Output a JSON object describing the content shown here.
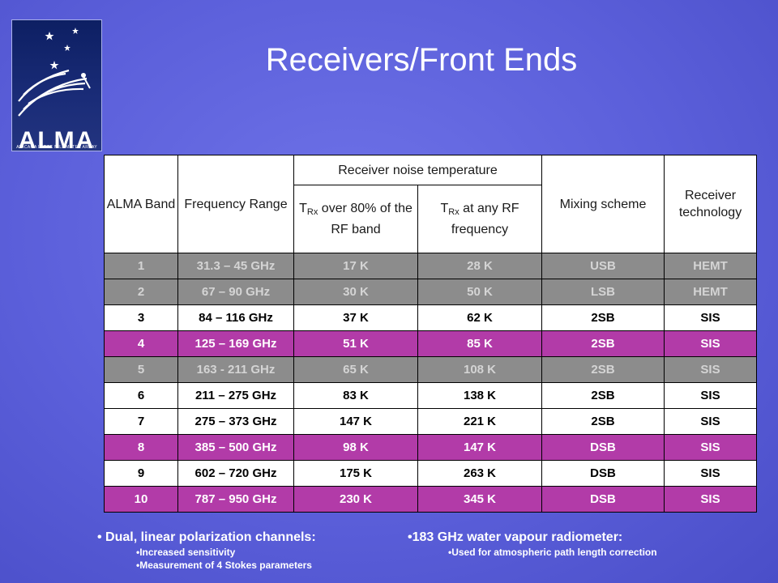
{
  "logo": {
    "wordmark": "ALMA",
    "subtitle": "ATACAMA LARGE MILLIMETER ARRAY"
  },
  "title": "Receivers/Front Ends",
  "table": {
    "headers": {
      "band": "ALMA Band",
      "freq": "Frequency Range",
      "noise": "Receiver noise temperature",
      "trx_prefix": "T",
      "trx_sub": "Rx",
      "trx80_suffix": " over 80% of the RF band",
      "trxany_suffix": " at any RF frequency",
      "mixing": "Mixing scheme",
      "tech": "Receiver technology"
    },
    "rows": [
      {
        "band": "1",
        "freq": "31.3 – 45 GHz",
        "t80": "17 K",
        "tany": "28 K",
        "mix": "USB",
        "tech": "HEMT",
        "style": "gray"
      },
      {
        "band": "2",
        "freq": "67 – 90 GHz",
        "t80": "30 K",
        "tany": "50 K",
        "mix": "LSB",
        "tech": "HEMT",
        "style": "gray"
      },
      {
        "band": "3",
        "freq": "84 – 116 GHz",
        "t80": "37 K",
        "tany": "62 K",
        "mix": "2SB",
        "tech": "SIS",
        "style": "white"
      },
      {
        "band": "4",
        "freq": "125 – 169 GHz",
        "t80": "51 K",
        "tany": "85 K",
        "mix": "2SB",
        "tech": "SIS",
        "style": "magenta"
      },
      {
        "band": "5",
        "freq": "163 - 211 GHz",
        "t80": "65 K",
        "tany": "108 K",
        "mix": "2SB",
        "tech": "SIS",
        "style": "gray"
      },
      {
        "band": "6",
        "freq": "211 – 275 GHz",
        "t80": "83 K",
        "tany": "138 K",
        "mix": "2SB",
        "tech": "SIS",
        "style": "white"
      },
      {
        "band": "7",
        "freq": "275 – 373 GHz",
        "t80": "147 K",
        "tany": "221 K",
        "mix": "2SB",
        "tech": "SIS",
        "style": "white"
      },
      {
        "band": "8",
        "freq": "385 – 500 GHz",
        "t80": "98 K",
        "tany": "147 K",
        "mix": "DSB",
        "tech": "SIS",
        "style": "magenta"
      },
      {
        "band": "9",
        "freq": "602 – 720 GHz",
        "t80": "175 K",
        "tany": "263 K",
        "mix": "DSB",
        "tech": "SIS",
        "style": "white"
      },
      {
        "band": "10",
        "freq": "787 – 950 GHz",
        "t80": "230 K",
        "tany": "345 K",
        "mix": "DSB",
        "tech": "SIS",
        "style": "magenta"
      }
    ]
  },
  "bullets_left": {
    "main": "• Dual, linear polarization channels:",
    "items": [
      "•Increased sensitivity",
      "•Measurement of 4 Stokes parameters"
    ]
  },
  "bullets_right": {
    "main": "•183 GHz water vapour radiometer:",
    "items": [
      "•Used for atmospheric path length correction"
    ]
  },
  "colors": {
    "background": "#5b5fda",
    "gray_row": "#8c8c8c",
    "magenta_row": "#b23ba8",
    "white_row": "#ffffff"
  }
}
